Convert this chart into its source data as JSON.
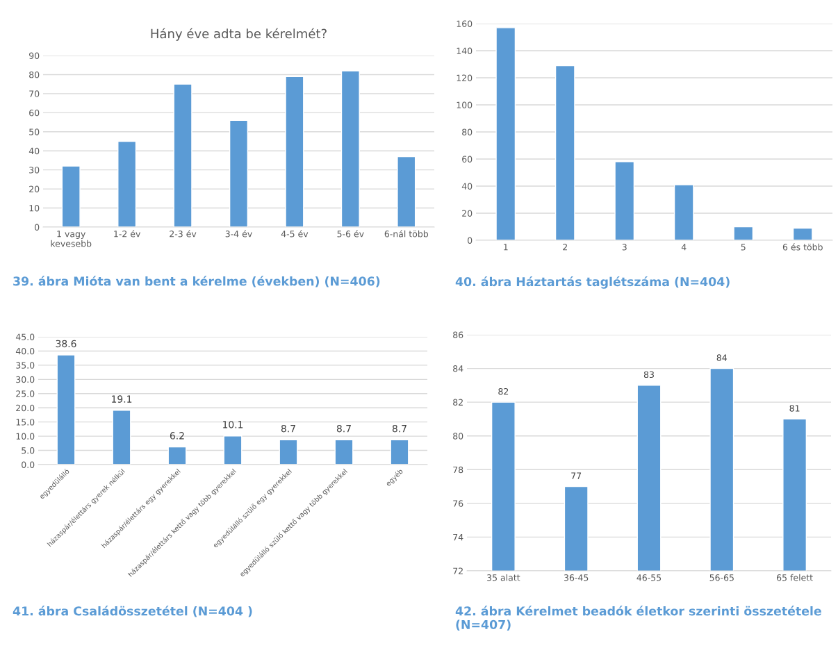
{
  "chart_data": [
    {
      "type": "bar",
      "title": "Hány éve adta be kérelmét?",
      "categories": [
        "1 vagy\nkevesebb",
        "1-2 év",
        "2-3 év",
        "3-4 év",
        "4-5 év",
        "5-6 év",
        "6-nál több"
      ],
      "values": [
        32,
        45,
        75,
        56,
        79,
        82,
        37
      ],
      "color": "#5b9bd5",
      "ylim": [
        0,
        90
      ],
      "yticks": [
        0,
        10,
        20,
        30,
        40,
        50,
        60,
        70,
        80,
        90
      ],
      "grid": "y",
      "annotations": [
        "39. ábra Mióta van bent a kérelme (években) (N=406)"
      ]
    },
    {
      "type": "bar",
      "categories": [
        "1",
        "2",
        "3",
        "4",
        "5",
        "6 és több"
      ],
      "values": [
        157,
        129,
        58,
        41,
        10,
        9
      ],
      "color": "#5b9bd5",
      "ylim": [
        0,
        160
      ],
      "yticks": [
        0,
        20,
        40,
        60,
        80,
        100,
        120,
        140,
        160
      ],
      "grid": "y",
      "annotations": [
        "40. ábra Háztartás taglétszáma (N=404)"
      ]
    },
    {
      "type": "bar",
      "categories": [
        "egyedülálló",
        "házaspár/élettárs gyerek nélkül",
        "házaspár/élettárs egy gyerekkel",
        "házaspár/élettárs kettő vagy több gyerekkel",
        "egyedülálló szülő egy gyerekkel",
        "egyedülálló szülő kettő vagy több gyerekkel",
        "egyéb"
      ],
      "values": [
        38.6,
        19.1,
        6.2,
        10.1,
        8.7,
        8.7,
        8.7
      ],
      "color": "#5b9bd5",
      "ylim": [
        0,
        45
      ],
      "yticks": [
        {
          "value": 0,
          "label": "0.0"
        },
        {
          "value": 5,
          "label": "5.0"
        },
        {
          "value": 10,
          "label": "10.0"
        },
        {
          "value": 15,
          "label": "15.0"
        },
        {
          "value": 20,
          "label": "20.0"
        },
        {
          "value": 25,
          "label": "25.0"
        },
        {
          "value": 30,
          "label": "30.0"
        },
        {
          "value": 35,
          "label": "35.0"
        },
        {
          "value": 40,
          "label": "40.0"
        },
        {
          "value": 45,
          "label": "45.0"
        }
      ],
      "grid": "y",
      "data_labels": true,
      "annotations": [
        "41. ábra Családösszetétel (N=404 )"
      ]
    },
    {
      "type": "bar",
      "categories": [
        "35 alatt",
        "36-45",
        "46-55",
        "56-65",
        "65 felett"
      ],
      "values": [
        82,
        77,
        83,
        84,
        81
      ],
      "color": "#5b9bd5",
      "ylim": [
        72,
        86
      ],
      "yticks": [
        72,
        74,
        76,
        78,
        80,
        82,
        84,
        86
      ],
      "grid": "y",
      "data_labels": true,
      "annotations": [
        "42. ábra Kérelmet beadók életkor szerinti összetétele (N=407)"
      ]
    }
  ]
}
